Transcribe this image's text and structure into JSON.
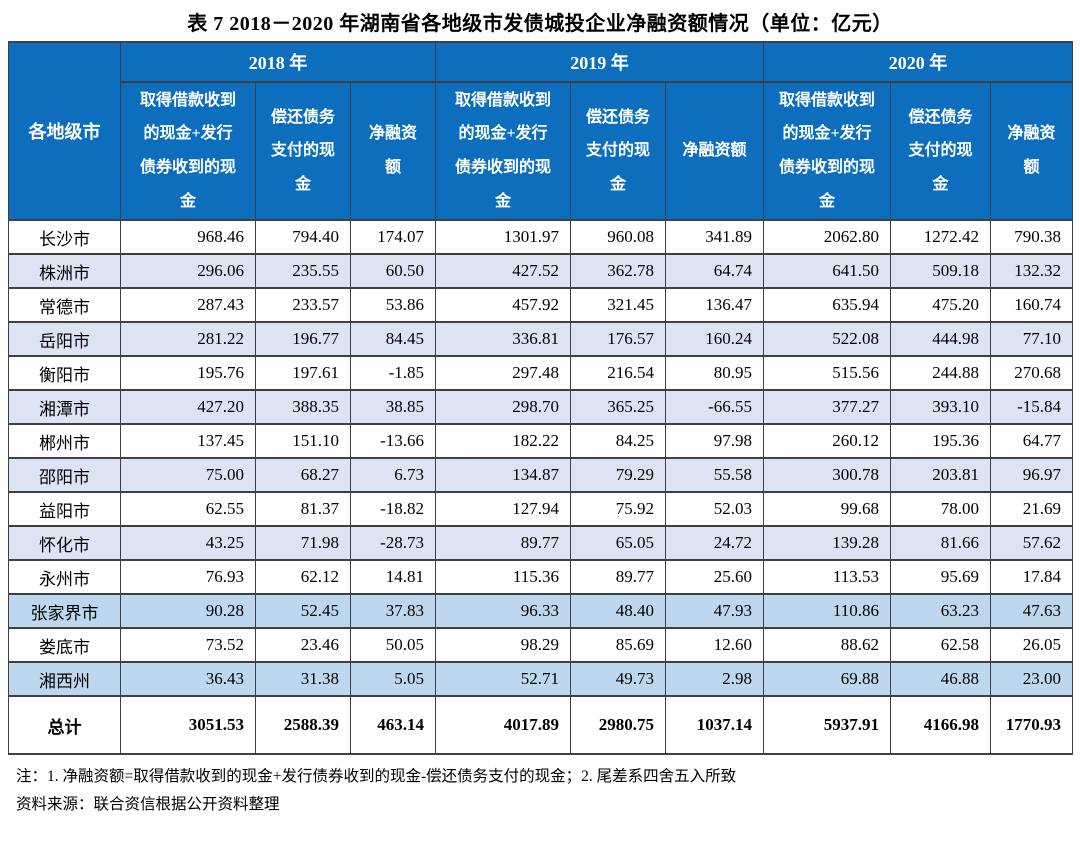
{
  "title": "表 7  2018－2020 年湖南省各地级市发债城投企业净融资额情况（单位：亿元）",
  "table": {
    "corner_header": "各地级市",
    "year_groups": [
      "2018 年",
      "2019 年",
      "2020 年"
    ],
    "sub_headers": [
      "取得借款收到的现金+发行债券收到的现金",
      "偿还债务支付的现金",
      "净融资额"
    ],
    "rows": [
      {
        "name": "长沙市",
        "shade": "white",
        "values": [
          "968.46",
          "794.40",
          "174.07",
          "1301.97",
          "960.08",
          "341.89",
          "2062.80",
          "1272.42",
          "790.38"
        ]
      },
      {
        "name": "株洲市",
        "shade": "light",
        "values": [
          "296.06",
          "235.55",
          "60.50",
          "427.52",
          "362.78",
          "64.74",
          "641.50",
          "509.18",
          "132.32"
        ]
      },
      {
        "name": "常德市",
        "shade": "white",
        "values": [
          "287.43",
          "233.57",
          "53.86",
          "457.92",
          "321.45",
          "136.47",
          "635.94",
          "475.20",
          "160.74"
        ]
      },
      {
        "name": "岳阳市",
        "shade": "light",
        "values": [
          "281.22",
          "196.77",
          "84.45",
          "336.81",
          "176.57",
          "160.24",
          "522.08",
          "444.98",
          "77.10"
        ]
      },
      {
        "name": "衡阳市",
        "shade": "white",
        "values": [
          "195.76",
          "197.61",
          "-1.85",
          "297.48",
          "216.54",
          "80.95",
          "515.56",
          "244.88",
          "270.68"
        ]
      },
      {
        "name": "湘潭市",
        "shade": "light",
        "values": [
          "427.20",
          "388.35",
          "38.85",
          "298.70",
          "365.25",
          "-66.55",
          "377.27",
          "393.10",
          "-15.84"
        ]
      },
      {
        "name": "郴州市",
        "shade": "white",
        "values": [
          "137.45",
          "151.10",
          "-13.66",
          "182.22",
          "84.25",
          "97.98",
          "260.12",
          "195.36",
          "64.77"
        ]
      },
      {
        "name": "邵阳市",
        "shade": "light",
        "values": [
          "75.00",
          "68.27",
          "6.73",
          "134.87",
          "79.29",
          "55.58",
          "300.78",
          "203.81",
          "96.97"
        ]
      },
      {
        "name": "益阳市",
        "shade": "white",
        "values": [
          "62.55",
          "81.37",
          "-18.82",
          "127.94",
          "75.92",
          "52.03",
          "99.68",
          "78.00",
          "21.69"
        ]
      },
      {
        "name": "怀化市",
        "shade": "light",
        "values": [
          "43.25",
          "71.98",
          "-28.73",
          "89.77",
          "65.05",
          "24.72",
          "139.28",
          "81.66",
          "57.62"
        ]
      },
      {
        "name": "永州市",
        "shade": "white",
        "values": [
          "76.93",
          "62.12",
          "14.81",
          "115.36",
          "89.77",
          "25.60",
          "113.53",
          "95.69",
          "17.84"
        ]
      },
      {
        "name": "张家界市",
        "shade": "medium",
        "values": [
          "90.28",
          "52.45",
          "37.83",
          "96.33",
          "48.40",
          "47.93",
          "110.86",
          "63.23",
          "47.63"
        ]
      },
      {
        "name": "娄底市",
        "shade": "white",
        "values": [
          "73.52",
          "23.46",
          "50.05",
          "98.29",
          "85.69",
          "12.60",
          "88.62",
          "62.58",
          "26.05"
        ]
      },
      {
        "name": "湘西州",
        "shade": "medium",
        "values": [
          "36.43",
          "31.38",
          "5.05",
          "52.71",
          "49.73",
          "2.98",
          "69.88",
          "46.88",
          "23.00"
        ]
      },
      {
        "name": "总计",
        "shade": "total",
        "values": [
          "3051.53",
          "2588.39",
          "463.14",
          "4017.89",
          "2980.75",
          "1037.14",
          "5937.91",
          "4166.98",
          "1770.93"
        ]
      }
    ]
  },
  "notes": [
    "注：1. 净融资额=取得借款收到的现金+发行债券收到的现金-偿还债务支付的现金；2. 尾差系四舍五入所致",
    "资料来源：联合资信根据公开资料整理"
  ],
  "colors": {
    "header_blue": "#0d6ebe",
    "row_light": "#dce4f3",
    "row_medium": "#bdd7ee",
    "border": "#3e4046",
    "header_text": "#ffffff",
    "body_text": "#000000"
  }
}
